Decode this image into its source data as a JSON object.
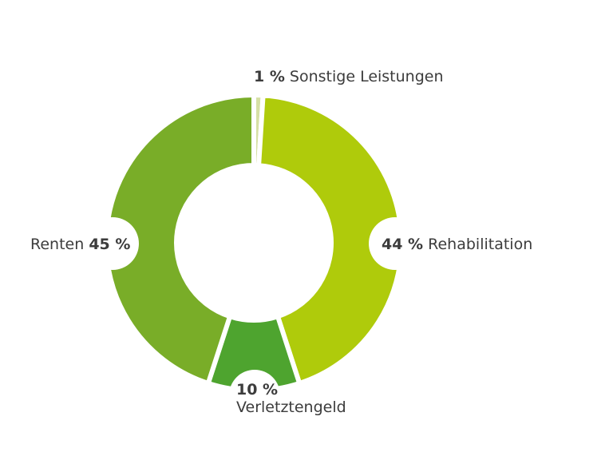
{
  "chart_data": {
    "type": "pie",
    "variant": "donut",
    "slices": [
      {
        "label": "Sonstige Leistungen",
        "value": 1,
        "display": "1 %",
        "color": "#d6e0a5"
      },
      {
        "label": "Rehabilitation",
        "value": 44,
        "display": "44 %",
        "color": "#afcb0b"
      },
      {
        "label": "Verletztengeld",
        "value": 10,
        "display": "10 %",
        "color": "#4ea42f"
      },
      {
        "label": "Renten",
        "value": 45,
        "display": "45 %",
        "color": "#79ad28"
      }
    ]
  }
}
